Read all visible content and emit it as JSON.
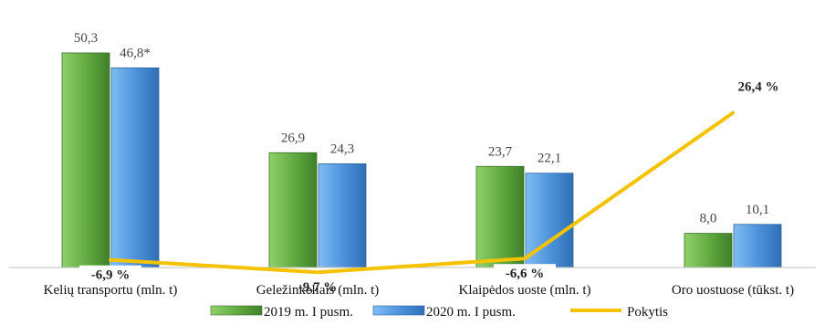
{
  "chart_data": {
    "type": "bar",
    "categories": [
      "Kelių transportu (mln. t)",
      "Geležinkeliais (mln. t)",
      "Klaipėdos uoste (mln. t)",
      "Oro uostuose (tūkst. t)"
    ],
    "series": [
      {
        "name": "2019 m. I pusm.",
        "values": [
          50.3,
          26.9,
          23.7,
          8.0
        ],
        "labels": [
          "50,3",
          "26,9",
          "23,7",
          "8,0"
        ],
        "color": "#6aa84f"
      },
      {
        "name": "2020 m. I pusm.",
        "values": [
          46.8,
          24.3,
          22.1,
          10.1
        ],
        "labels": [
          "46,8*",
          "24,3",
          "22,1",
          "10,1"
        ],
        "color": "#4a90d9"
      }
    ],
    "line_series": {
      "name": "Pokytis",
      "values": [
        -6.9,
        -9.7,
        -6.6,
        26.4
      ],
      "labels": [
        "-6,9 %",
        "-9,7 %",
        "-6,6 %",
        "26,4 %"
      ],
      "color": "#f5c200"
    },
    "ylim": [
      0,
      55
    ],
    "line_ylim": [
      -20,
      40
    ],
    "grid": false,
    "legend_position": "bottom"
  }
}
